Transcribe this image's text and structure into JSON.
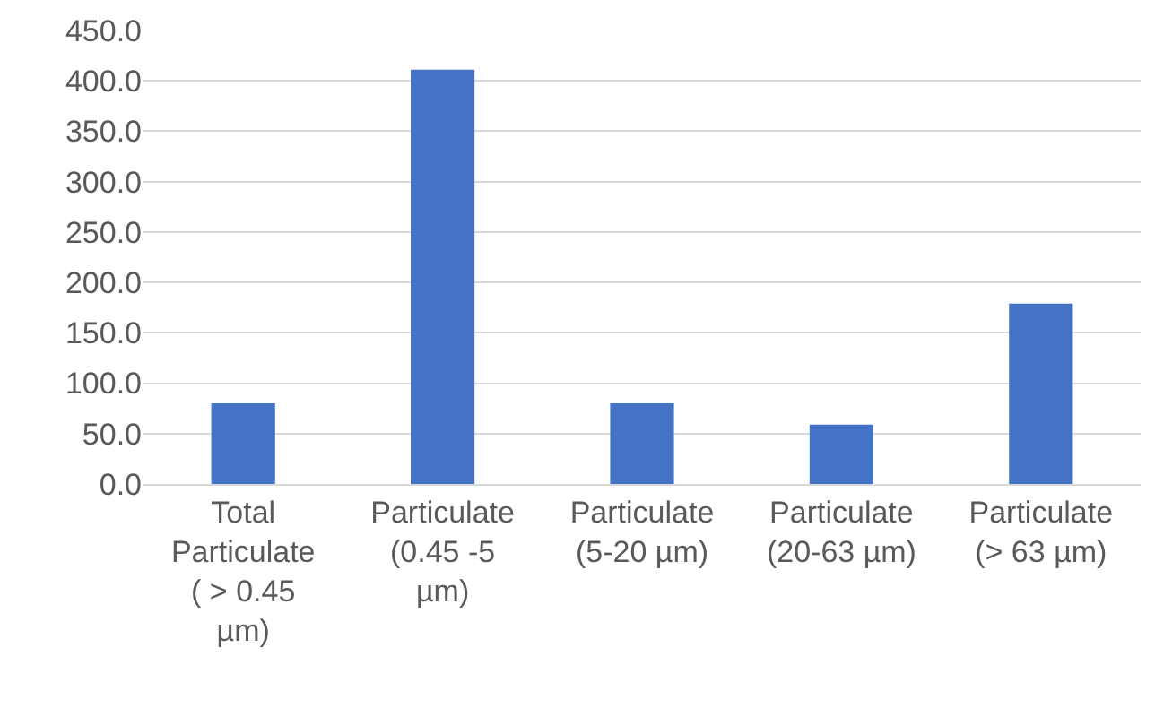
{
  "chart_data": {
    "type": "bar",
    "categories": [
      "Total Particulate ( > 0.45 µm)",
      "Particulate (0.45 -5 µm)",
      "Particulate (5-20 µm)",
      "Particulate (20-63 µm)",
      "Particulate (> 63 µm)"
    ],
    "values": [
      80,
      411,
      80,
      59,
      179
    ],
    "color": "#4472c4",
    "ylim": [
      0,
      450
    ],
    "yticks": [
      {
        "value": 0,
        "label": "0.0"
      },
      {
        "value": 50,
        "label": "50.0"
      },
      {
        "value": 100,
        "label": "100.0"
      },
      {
        "value": 150,
        "label": "150.0"
      },
      {
        "value": 200,
        "label": "200.0"
      },
      {
        "value": 250,
        "label": "250.0"
      },
      {
        "value": 300,
        "label": "300.0"
      },
      {
        "value": 350,
        "label": "350.0"
      },
      {
        "value": 400,
        "label": "400.0"
      },
      {
        "value": 450,
        "label": "450.0"
      }
    ],
    "grid": "y"
  }
}
